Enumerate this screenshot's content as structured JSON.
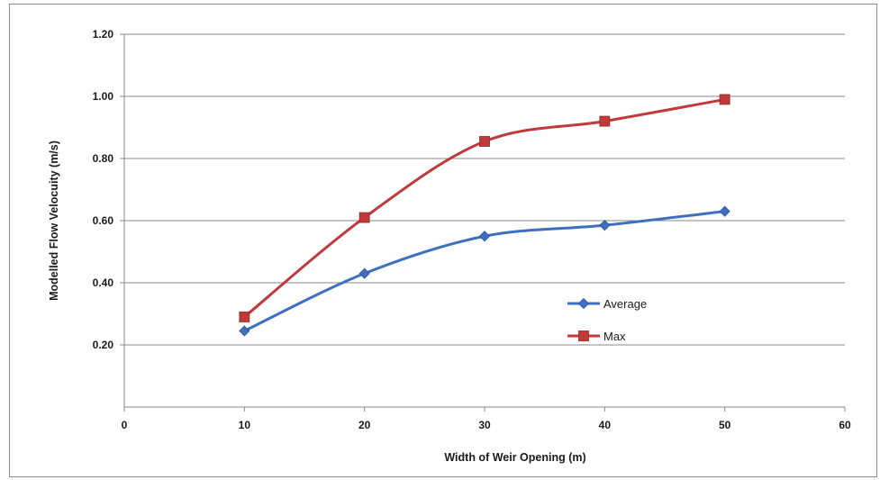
{
  "chart_data": {
    "type": "line",
    "title": "",
    "xlabel": "Width of Weir Opening (m)",
    "ylabel": "Modelled Flow Velocuity (m/s)",
    "xlim": [
      0,
      60
    ],
    "ylim": [
      0,
      1.2
    ],
    "x_ticks": [
      "0",
      "10",
      "20",
      "30",
      "40",
      "50",
      "60"
    ],
    "y_ticks": [
      "0.20",
      "0.40",
      "0.60",
      "0.80",
      "1.00",
      "1.20"
    ],
    "grid": "horizontal",
    "legend_position": "center-right",
    "series": [
      {
        "name": "Average",
        "color": "#3e6fc0",
        "marker": "diamond",
        "x": [
          10,
          20,
          30,
          40,
          50
        ],
        "y": [
          0.245,
          0.43,
          0.55,
          0.585,
          0.63
        ]
      },
      {
        "name": "Max",
        "color": "#c0393b",
        "marker": "square",
        "x": [
          10,
          20,
          30,
          40,
          50
        ],
        "y": [
          0.29,
          0.61,
          0.855,
          0.92,
          0.99
        ]
      }
    ]
  }
}
